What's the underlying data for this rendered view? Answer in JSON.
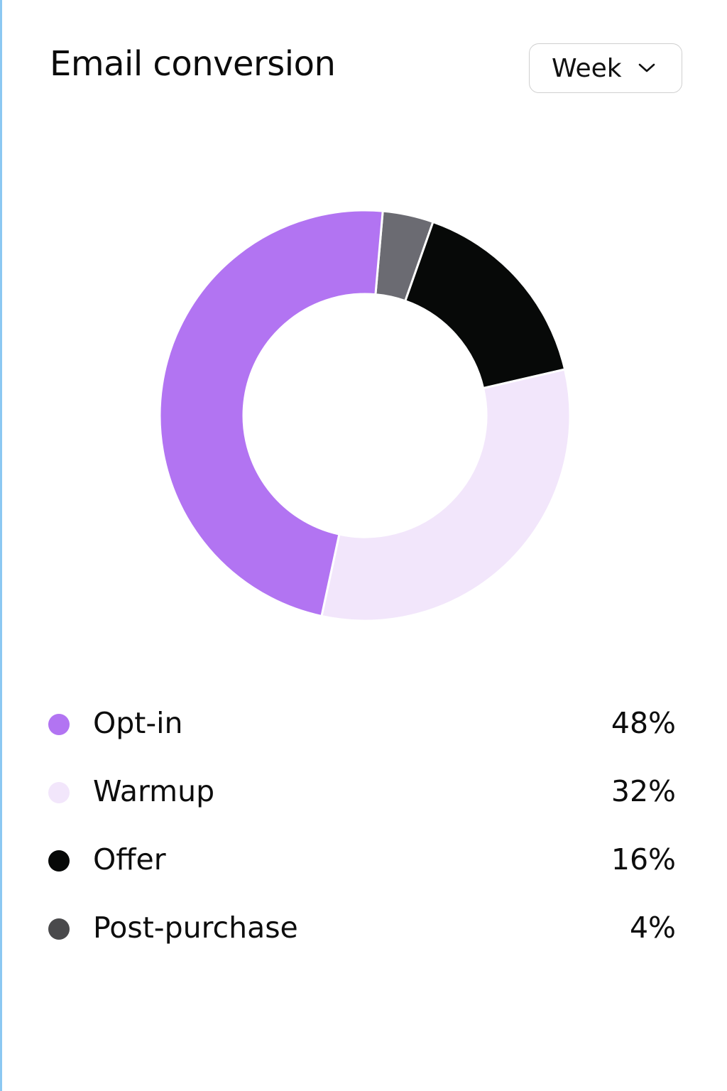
{
  "card": {
    "title": "Email conversion",
    "period_select": {
      "value": "Week",
      "icon": "chevron-down-icon"
    }
  },
  "chart_data": {
    "type": "pie",
    "variant": "donut",
    "title": "Email conversion",
    "legend_position": "bottom",
    "slices": [
      {
        "name": "Opt-in",
        "value": 48,
        "label": "48%",
        "color": "#b274f2"
      },
      {
        "name": "Warmup",
        "value": 32,
        "label": "32%",
        "color": "#f2e6fb"
      },
      {
        "name": "Offer",
        "value": 16,
        "label": "16%",
        "color": "#070908"
      },
      {
        "name": "Post-purchase",
        "value": 4,
        "label": "4%",
        "color": "#6b6b72"
      }
    ]
  },
  "legend": {
    "items": [
      {
        "label": "Opt-in",
        "value": "48%",
        "color": "#b274f2"
      },
      {
        "label": "Warmup",
        "value": "32%",
        "color": "#f2e6fb"
      },
      {
        "label": "Offer",
        "value": "16%",
        "color": "#070908"
      },
      {
        "label": "Post-purchase",
        "value": "4%",
        "color": "#4a4a4c"
      }
    ]
  }
}
